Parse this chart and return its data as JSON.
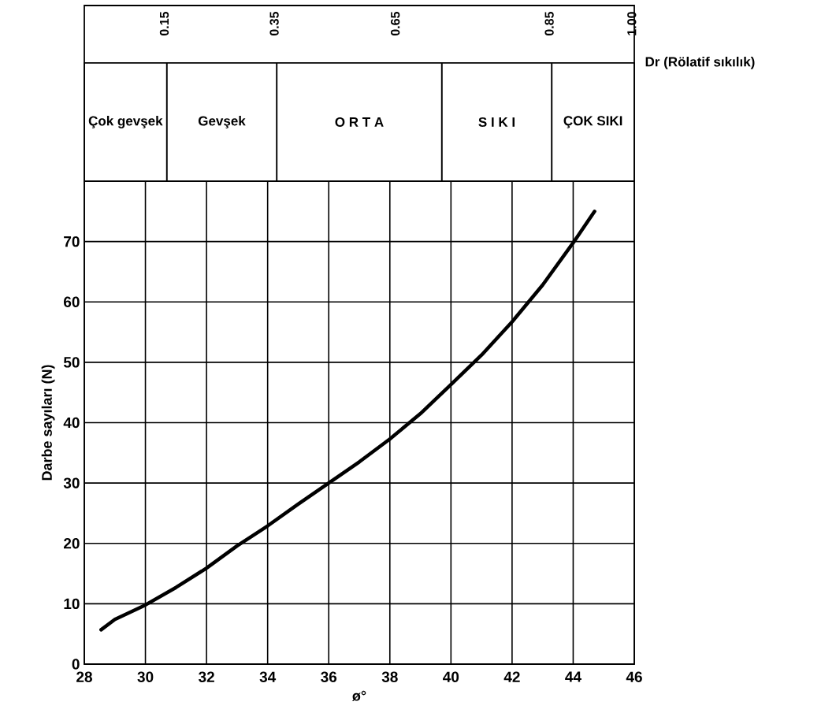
{
  "chart_data": [
    {
      "type": "other",
      "categories": [
        "Çok gevşek",
        "Gevşek",
        "O R T A",
        "S I K I",
        "ÇOK SIKI"
      ],
      "values": [
        0.15,
        0.35,
        0.65,
        0.85,
        1.0
      ],
      "value_labels": [
        "0.15",
        "0.35",
        "0.65",
        "0.85",
        "1.00"
      ],
      "annotations": [
        "Dr (Rölatif sıkılık)"
      ]
    },
    {
      "type": "line",
      "xlabel": "ø°",
      "ylabel": "Darbe sayıları (N)",
      "series": [
        {
          "color": "#000000",
          "x": [
            28.55,
            29,
            30,
            31,
            32,
            33,
            34,
            35,
            36,
            37,
            38,
            39,
            40,
            41,
            42,
            43,
            44,
            44.7
          ],
          "values": [
            5.7,
            7.4,
            9.8,
            12.7,
            15.9,
            19.6,
            22.9,
            26.5,
            30,
            33.5,
            37.3,
            41.5,
            46.3,
            51.2,
            56.7,
            62.8,
            69.8,
            75
          ]
        }
      ],
      "xlim": [
        28,
        46
      ],
      "xticks": [
        28,
        30,
        32,
        34,
        36,
        38,
        40,
        42,
        44,
        46
      ],
      "ylim": [
        0,
        80
      ],
      "yticks": [
        0,
        10,
        20,
        30,
        40,
        50,
        60,
        70
      ],
      "grid": true,
      "marker": "none",
      "line_style": "solid"
    }
  ]
}
